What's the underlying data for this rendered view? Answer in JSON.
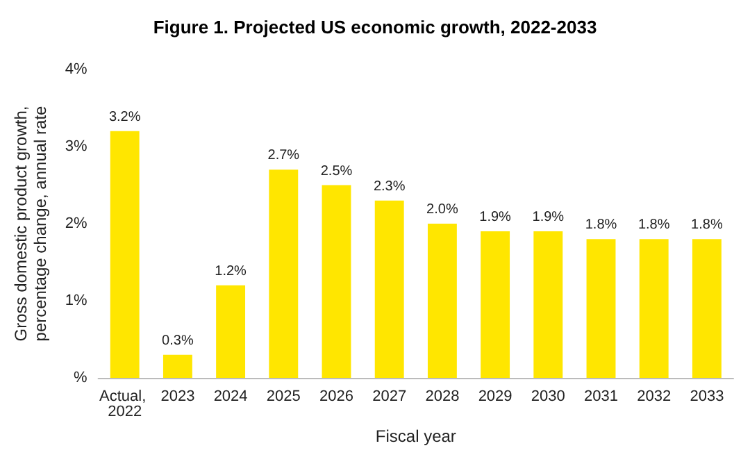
{
  "chart_data": {
    "type": "bar",
    "title": "Figure 1. Projected US economic growth, 2022-2033",
    "xlabel": "Fiscal year",
    "ylabel": "Gross domestic product growth, percentage change, annual rate",
    "categories": [
      "Actual, 2022",
      "2023",
      "2024",
      "2025",
      "2026",
      "2027",
      "2028",
      "2029",
      "2030",
      "2031",
      "2032",
      "2033"
    ],
    "values": [
      3.2,
      0.3,
      1.2,
      2.7,
      2.5,
      2.3,
      2.0,
      1.9,
      1.9,
      1.8,
      1.8,
      1.8
    ],
    "value_labels": [
      "3.2%",
      "0.3%",
      "1.2%",
      "2.7%",
      "2.5%",
      "2.3%",
      "2.0%",
      "1.9%",
      "1.9%",
      "1.8%",
      "1.8%",
      "1.8%"
    ],
    "color": "#ffe600",
    "ylim": [
      0,
      4
    ],
    "yticks": [
      {
        "value": 0,
        "label": "%"
      },
      {
        "value": 1,
        "label": "1%"
      },
      {
        "value": 2,
        "label": "2%"
      },
      {
        "value": 3,
        "label": "3%"
      },
      {
        "value": 4,
        "label": "4%"
      }
    ],
    "grid": false
  }
}
